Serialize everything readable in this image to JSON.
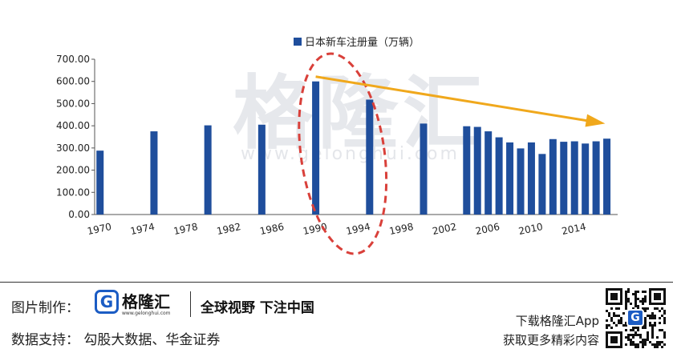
{
  "chart_data": {
    "type": "bar",
    "title": "",
    "legend": "日本新车注册量（万辆）",
    "legend_position": "top-center",
    "xlabel": "",
    "ylabel": "",
    "ylim": [
      0,
      700
    ],
    "yticks": [
      "0.00",
      "100.00",
      "200.00",
      "300.00",
      "400.00",
      "500.00",
      "600.00",
      "700.00"
    ],
    "xtick_labels": [
      "1970",
      "1974",
      "1978",
      "1982",
      "1986",
      "1990",
      "1994",
      "1998",
      "2002",
      "2006",
      "2010",
      "2014"
    ],
    "grid": false,
    "series": [
      {
        "name": "日本新车注册量（万辆）",
        "color": "#1f4e9c",
        "points": [
          {
            "x": 1970,
            "y": 288
          },
          {
            "x": 1975,
            "y": 375
          },
          {
            "x": 1980,
            "y": 402
          },
          {
            "x": 1985,
            "y": 405
          },
          {
            "x": 1990,
            "y": 600
          },
          {
            "x": 1995,
            "y": 518
          },
          {
            "x": 2000,
            "y": 410
          },
          {
            "x": 2004,
            "y": 398
          },
          {
            "x": 2005,
            "y": 395
          },
          {
            "x": 2006,
            "y": 375
          },
          {
            "x": 2007,
            "y": 348
          },
          {
            "x": 2008,
            "y": 325
          },
          {
            "x": 2009,
            "y": 298
          },
          {
            "x": 2010,
            "y": 325
          },
          {
            "x": 2011,
            "y": 273
          },
          {
            "x": 2012,
            "y": 340
          },
          {
            "x": 2013,
            "y": 328
          },
          {
            "x": 2014,
            "y": 330
          },
          {
            "x": 2015,
            "y": 320
          },
          {
            "x": 2016,
            "y": 330
          },
          {
            "x": 2017,
            "y": 342
          }
        ]
      }
    ],
    "annotations": [
      {
        "type": "dashed-ellipse",
        "color": "#d9403a",
        "around": "1990-1994"
      },
      {
        "type": "arrow",
        "color": "#f0a81c",
        "from": {
          "x": 1990,
          "y": 600
        },
        "to": {
          "x": 2017,
          "y": 400
        }
      }
    ]
  },
  "watermark": {
    "text": "格隆汇",
    "url": "www.gelonghui.com"
  },
  "footer": {
    "credit_label": "图片制作：",
    "logo_mark": "G",
    "logo_text": "格隆汇",
    "logo_url": "www.gelonghui.com",
    "slogan": "全球视野 下注中国",
    "support_label": "数据支持： 勾股大数据、华金证券",
    "app_line1": "下载格隆汇App",
    "app_line2": "获取更多精彩内容",
    "qr_badge": "G"
  }
}
